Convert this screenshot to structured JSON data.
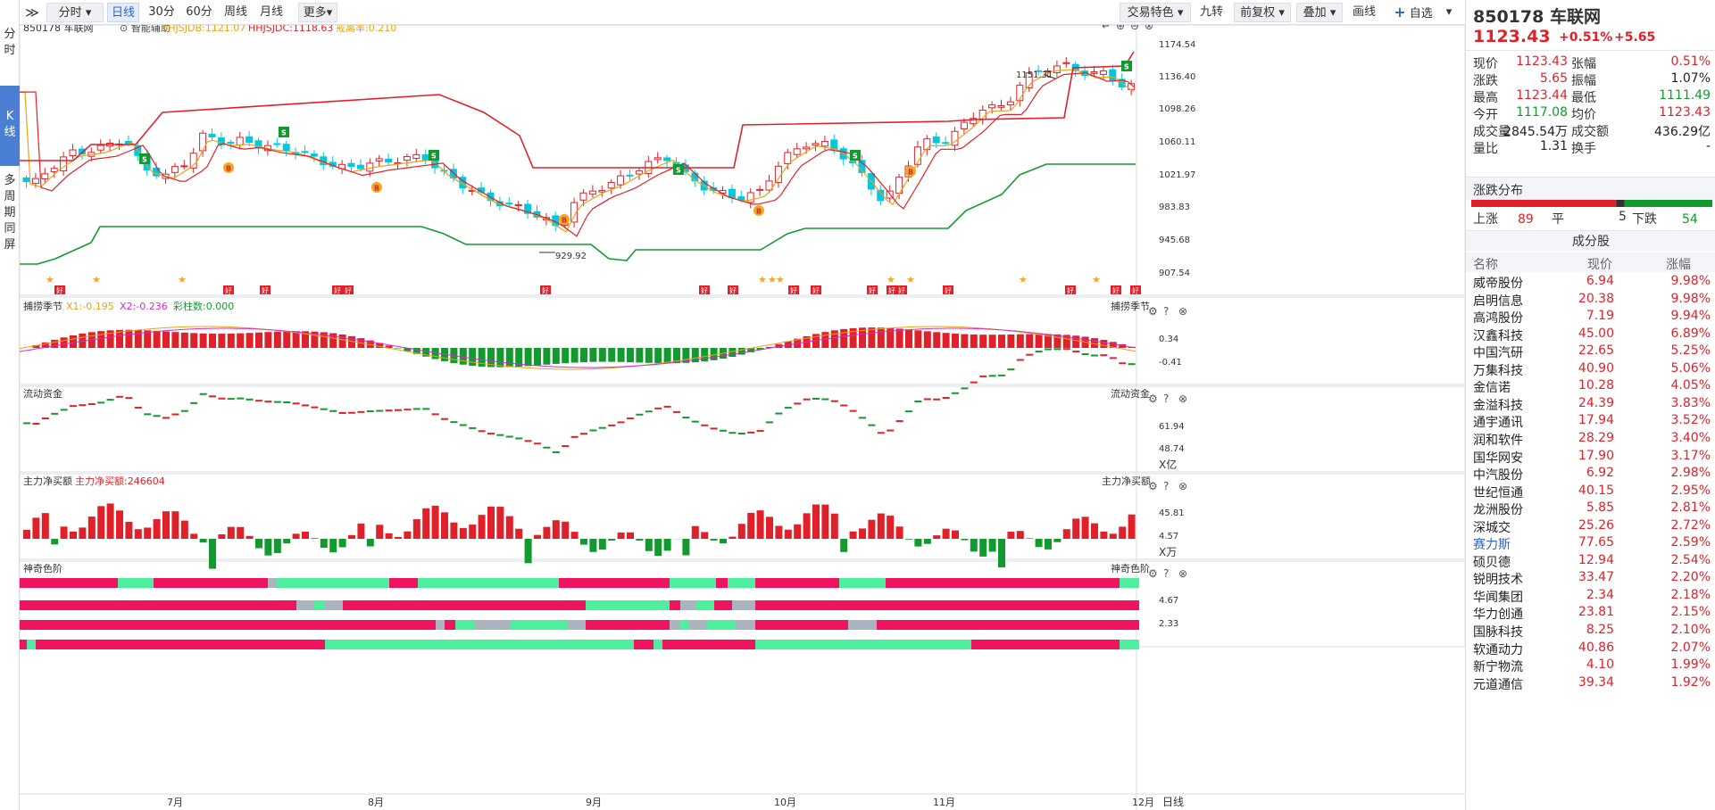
{
  "leftnav": {
    "items": [
      "分",
      "时",
      "K",
      "线",
      "多",
      "周",
      "期",
      "同",
      "屏"
    ]
  },
  "toolbar": {
    "expand": "≫",
    "fenshi": "分时",
    "daily": "日线",
    "m30": "30分",
    "m60": "60分",
    "weekly": "周线",
    "monthly": "月线",
    "more": "更多",
    "jiaoyi": "交易特色",
    "jiuzhuan": "九转",
    "fuquan": "前复权",
    "diejia": "叠加",
    "huaxian": "画线",
    "zixuan": "自选",
    "collapse": "≪"
  },
  "chart": {
    "symbol": "850178 车联网",
    "assist": "智能辅助",
    "ind1": "HHJSJDB:1121.07",
    "ind2": "HHJSJDC:1118.63",
    "ind3": "戒离率:0.210",
    "high_mark": "1151.31",
    "low_mark": "929.92",
    "price_axis": [
      "1174.54",
      "1136.40",
      "1098.26",
      "1060.11",
      "1021.97",
      "983.83",
      "945.68",
      "907.54"
    ],
    "p1": {
      "name": "捕捞季节",
      "x1": "X1:-0.195",
      "x2": "X2:-0.236",
      "cz": "彩柱数:0.000",
      "axis": [
        "0.34",
        "-0.41"
      ]
    },
    "p2": {
      "name": "流动资金",
      "axis": [
        "61.94",
        "48.74"
      ],
      "unit": "X亿"
    },
    "p3": {
      "name": "主力净买额",
      "val": "主力净买额:246604",
      "axis": [
        "45.81",
        "4.57"
      ],
      "unit": "X万"
    },
    "p4": {
      "name": "神奇色阶",
      "axis": [
        "4.67",
        "2.33"
      ]
    },
    "xaxis": [
      "7月",
      "8月",
      "9月",
      "10月",
      "11月",
      "12月"
    ],
    "period": "日线",
    "tag_b": "B",
    "tag_s": "S",
    "tag_hao": "好"
  },
  "quote": {
    "code": "850178",
    "name": "车联网",
    "price": "1123.43",
    "chg_pct": "+0.51%",
    "chg": "+5.65",
    "rows": [
      {
        "l1": "现价",
        "v1": "1123.43",
        "c1": "red",
        "l2": "张幅",
        "v2": "0.51%",
        "c2": "red"
      },
      {
        "l1": "涨跌",
        "v1": "5.65",
        "c1": "red",
        "l2": "振幅",
        "v2": "1.07%",
        "c2": "black"
      },
      {
        "l1": "最高",
        "v1": "1123.44",
        "c1": "red",
        "l2": "最低",
        "v2": "1111.49",
        "c2": "green"
      },
      {
        "l1": "今开",
        "v1": "1117.08",
        "c1": "green",
        "l2": "均价",
        "v2": "1123.43",
        "c2": "red"
      },
      {
        "l1": "成交量",
        "v1": "2845.54万",
        "c1": "black",
        "l2": "成交额",
        "v2": "436.29亿",
        "c2": "black"
      },
      {
        "l1": "量比",
        "v1": "1.31",
        "c1": "black",
        "l2": "换手",
        "v2": "-",
        "c2": "black"
      }
    ],
    "dist_title": "涨跌分布",
    "up_label": "上涨",
    "up": "89",
    "flat_label": "平",
    "flat": "5",
    "down_label": "下跌",
    "down": "54",
    "cons_title": "成分股",
    "h_name": "名称",
    "h_price": "现价",
    "h_pct": "涨幅",
    "stocks": [
      {
        "n": "威帝股份",
        "p": "6.94",
        "c": "9.98%"
      },
      {
        "n": "启明信息",
        "p": "20.38",
        "c": "9.98%"
      },
      {
        "n": "高鸿股份",
        "p": "7.19",
        "c": "9.94%"
      },
      {
        "n": "汉鑫科技",
        "p": "45.00",
        "c": "6.89%"
      },
      {
        "n": "中国汽研",
        "p": "22.65",
        "c": "5.25%"
      },
      {
        "n": "万集科技",
        "p": "40.90",
        "c": "5.06%"
      },
      {
        "n": "金信诺",
        "p": "10.28",
        "c": "4.05%"
      },
      {
        "n": "金溢科技",
        "p": "24.39",
        "c": "3.83%"
      },
      {
        "n": "通宇通讯",
        "p": "17.94",
        "c": "3.52%"
      },
      {
        "n": "润和软件",
        "p": "28.29",
        "c": "3.40%"
      },
      {
        "n": "国华网安",
        "p": "17.90",
        "c": "3.17%"
      },
      {
        "n": "中汽股份",
        "p": "6.92",
        "c": "2.98%"
      },
      {
        "n": "世纪恒通",
        "p": "40.15",
        "c": "2.95%"
      },
      {
        "n": "龙洲股份",
        "p": "5.85",
        "c": "2.81%"
      },
      {
        "n": "深城交",
        "p": "25.26",
        "c": "2.72%"
      },
      {
        "n": "赛力斯",
        "p": "77.65",
        "c": "2.59%"
      },
      {
        "n": "硕贝德",
        "p": "12.94",
        "c": "2.54%"
      },
      {
        "n": "锐明技术",
        "p": "33.47",
        "c": "2.20%"
      },
      {
        "n": "华闻集团",
        "p": "2.34",
        "c": "2.18%"
      },
      {
        "n": "华力创通",
        "p": "23.81",
        "c": "2.15%"
      },
      {
        "n": "国脉科技",
        "p": "8.25",
        "c": "2.10%"
      },
      {
        "n": "软通动力",
        "p": "40.86",
        "c": "2.07%"
      },
      {
        "n": "新宁物流",
        "p": "4.10",
        "c": "1.99%"
      },
      {
        "n": "元道通信",
        "p": "39.34",
        "c": "1.92%"
      }
    ]
  },
  "colors": {
    "up": "#e0212a",
    "down": "#00c8e0",
    "green": "#139a2f",
    "pink": "#f0135f",
    "mint": "#4ef0a0",
    "grey": "#a9b4be",
    "accent": "#2f64c8"
  }
}
